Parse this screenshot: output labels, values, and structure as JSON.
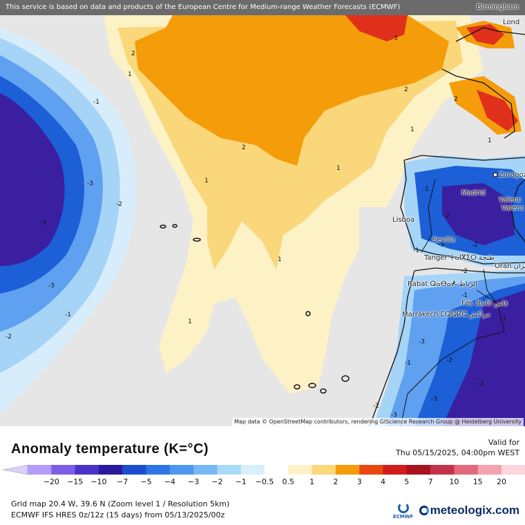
{
  "header": {
    "notice": "This service is based on data and products of the European Centre for Medium-range Weather Forecasts (ECMWF)"
  },
  "map": {
    "attribution": "Map data © OpenStreetMap contributors, rendering GIScience Research Group @ Heidelberg University",
    "cities": [
      "Birmingham",
      "Lond",
      "Zaragoza",
      "Madrid",
      "Valenc",
      "Valenc",
      "Lisboa",
      "Sevilla",
      "Tanger ⵜⴰⵏⴳⵉⵔ طنجة",
      "Rabat ⵕⴰⴱⴰⶍ الرباط",
      "Oran وهران",
      "Fès ⴼⴰⵙ فاس",
      "Marrakech ⵎⵕⵕⴽⵛ مراكش"
    ],
    "contour_labels": [
      "2",
      "1",
      "3",
      "2",
      "2",
      "2",
      "-1",
      "-3",
      "-2",
      "-3",
      "-3",
      "-1",
      "-2",
      "1",
      "1",
      "1",
      "1",
      "1",
      "1",
      "-1",
      "-2",
      "-1",
      "-3",
      "-2",
      "-2",
      "-1",
      "-3",
      "-1",
      "-2",
      "-3",
      "-1",
      "-2",
      "-3",
      "-1"
    ],
    "colors": {
      "ocean_neutral": "#e6e6e6",
      "cold_deep": "#3a1fa0",
      "cold_blue": "#1c5fd6",
      "cold_mid": "#5fa0f0",
      "cold_light": "#a6d4f7",
      "cold_pale": "#d8edfb",
      "warm_pale": "#fdf1c6",
      "warm_yellow": "#f9d77a",
      "warm_orange": "#f59c0a",
      "warm_red": "#e0301c"
    }
  },
  "legend": {
    "title": "Anomaly temperature (K=°C)",
    "valid_label": "Valid for",
    "valid_time": "Thu 05/15/2025, 04:00pm WEST",
    "ticks": [
      "−20",
      "−15",
      "−10",
      "−7",
      "−5",
      "−4",
      "−3",
      "−2",
      "−1",
      "−0.5",
      "0.5",
      "1",
      "2",
      "3",
      "4",
      "5",
      "7",
      "10",
      "15",
      "20"
    ],
    "colors": [
      "#b39cf7",
      "#7d5ce6",
      "#4b33c7",
      "#2b1a9e",
      "#1c4fd0",
      "#2d74e6",
      "#4d97ef",
      "#79b8f4",
      "#a9daf8",
      "#d9effb",
      "#ffffff",
      "#fdf1c6",
      "#f9d77a",
      "#f59c0a",
      "#e8470e",
      "#d01c1c",
      "#a8131f",
      "#c4324a",
      "#e26a7d",
      "#f4a3ae",
      "#fbd6dc"
    ],
    "grid_info": "Grid map 20.4 W, 39.6 N (Zoom level 1 / Resolution 5km)",
    "model_info": "ECMWF IFS HRES 0z/12z (15 days) from 05/13/2025/00z",
    "ecmwf_logo": "ECMWF",
    "brand": "meteologix.com"
  }
}
